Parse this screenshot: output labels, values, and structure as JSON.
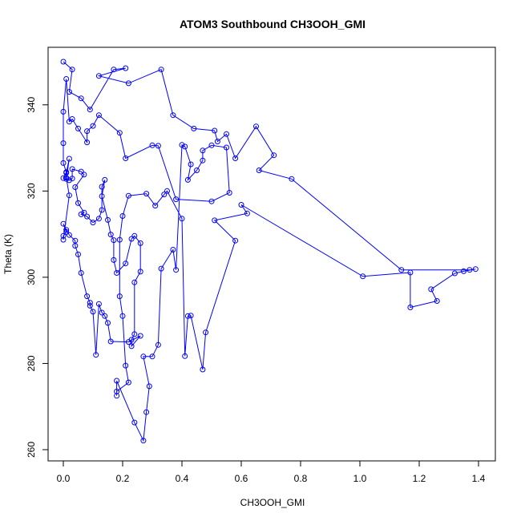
{
  "chart_data": {
    "type": "line",
    "title": "ATOM3 Southbound CH3OOH_GMI",
    "xlabel": "CH3OOH_GMI",
    "ylabel": "Theta (K)",
    "xlim": [
      0,
      1.4
    ],
    "ylim": [
      260,
      350
    ],
    "x_ticks": [
      "0.0",
      "0.2",
      "0.4",
      "0.6",
      "0.8",
      "1.0",
      "1.2",
      "1.4"
    ],
    "x_tick_values": [
      0,
      0.2,
      0.4,
      0.6,
      0.8,
      1.0,
      1.2,
      1.4
    ],
    "y_ticks": [
      "260",
      "280",
      "300",
      "320",
      "340"
    ],
    "y_tick_values": [
      260,
      280,
      300,
      320,
      340
    ],
    "grid": false,
    "markers": "open-circle",
    "color": "#0000ff",
    "series": [
      {
        "points": [
          [
            0.0,
            350.0
          ],
          [
            0.03,
            348.2
          ],
          [
            0.02,
            343.0
          ],
          [
            0.06,
            341.5
          ],
          [
            0.09,
            338.9
          ],
          [
            0.17,
            348.2
          ],
          [
            0.21,
            348.5
          ],
          [
            0.12,
            346.7
          ],
          [
            0.22,
            345.0
          ],
          [
            0.33,
            348.2
          ],
          [
            0.37,
            337.6
          ],
          [
            0.44,
            334.5
          ],
          [
            0.51,
            334.0
          ],
          [
            0.52,
            331.5
          ],
          [
            0.55,
            333.2
          ],
          [
            0.58,
            327.6
          ],
          [
            0.65,
            335.0
          ],
          [
            0.71,
            328.3
          ],
          [
            0.66,
            324.8
          ],
          [
            0.77,
            322.8
          ],
          [
            1.14,
            301.7
          ],
          [
            1.37,
            301.7
          ],
          [
            1.39,
            301.9
          ],
          [
            1.35,
            301.4
          ],
          [
            1.32,
            300.9
          ],
          [
            1.24,
            297.2
          ],
          [
            1.26,
            294.5
          ],
          [
            1.17,
            293.0
          ],
          [
            1.17,
            301.1
          ],
          [
            1.01,
            300.2
          ],
          [
            0.6,
            316.8
          ],
          [
            0.62,
            314.8
          ],
          [
            0.51,
            313.2
          ],
          [
            0.58,
            308.5
          ],
          [
            0.48,
            287.2
          ],
          [
            0.47,
            278.6
          ],
          [
            0.43,
            291.1
          ],
          [
            0.42,
            291.0
          ],
          [
            0.41,
            281.7
          ],
          [
            0.4,
            313.6
          ],
          [
            0.35,
            320.0
          ],
          [
            0.34,
            319.2
          ],
          [
            0.31,
            316.6
          ],
          [
            0.28,
            319.4
          ],
          [
            0.22,
            318.9
          ],
          [
            0.2,
            314.2
          ],
          [
            0.19,
            308.7
          ],
          [
            0.19,
            295.6
          ],
          [
            0.2,
            291.0
          ],
          [
            0.21,
            279.5
          ],
          [
            0.22,
            275.6
          ],
          [
            0.18,
            273.5
          ],
          [
            0.18,
            272.5
          ],
          [
            0.18,
            276.0
          ],
          [
            0.24,
            266.3
          ],
          [
            0.27,
            262.1
          ],
          [
            0.28,
            268.7
          ],
          [
            0.29,
            274.7
          ],
          [
            0.27,
            281.6
          ],
          [
            0.3,
            281.6
          ],
          [
            0.32,
            284.3
          ],
          [
            0.33,
            302.0
          ],
          [
            0.37,
            306.4
          ],
          [
            0.38,
            301.7
          ],
          [
            0.4,
            330.7
          ],
          [
            0.41,
            330.3
          ],
          [
            0.43,
            326.2
          ],
          [
            0.42,
            322.6
          ],
          [
            0.45,
            324.8
          ],
          [
            0.47,
            327.1
          ],
          [
            0.47,
            329.4
          ],
          [
            0.5,
            330.6
          ],
          [
            0.55,
            330.1
          ],
          [
            0.56,
            319.6
          ],
          [
            0.5,
            317.6
          ],
          [
            0.38,
            318.1
          ],
          [
            0.32,
            330.5
          ],
          [
            0.3,
            330.6
          ],
          [
            0.21,
            327.6
          ],
          [
            0.19,
            333.5
          ],
          [
            0.12,
            337.6
          ],
          [
            0.1,
            335.1
          ],
          [
            0.08,
            333.9
          ],
          [
            0.08,
            331.3
          ],
          [
            0.05,
            334.5
          ],
          [
            0.03,
            336.7
          ],
          [
            0.02,
            336.1
          ],
          [
            0.01,
            346.0
          ],
          [
            0.0,
            338.4
          ],
          [
            0.0,
            331.1
          ],
          [
            0.0,
            326.5
          ],
          [
            0.01,
            324.4
          ],
          [
            0.0,
            323.0
          ],
          [
            0.02,
            322.5
          ],
          [
            0.03,
            322.9
          ],
          [
            0.03,
            325.1
          ],
          [
            0.06,
            324.5
          ],
          [
            0.07,
            323.8
          ],
          [
            0.04,
            320.9
          ],
          [
            0.05,
            317.2
          ],
          [
            0.07,
            315.0
          ],
          [
            0.06,
            314.6
          ],
          [
            0.08,
            314.1
          ],
          [
            0.1,
            312.7
          ],
          [
            0.12,
            313.6
          ],
          [
            0.13,
            315.6
          ],
          [
            0.13,
            321.0
          ],
          [
            0.14,
            322.6
          ],
          [
            0.13,
            318.8
          ],
          [
            0.15,
            313.3
          ],
          [
            0.16,
            309.9
          ],
          [
            0.17,
            308.6
          ],
          [
            0.17,
            304.0
          ],
          [
            0.18,
            301.0
          ],
          [
            0.21,
            303.2
          ],
          [
            0.23,
            308.9
          ],
          [
            0.24,
            309.6
          ],
          [
            0.26,
            307.9
          ],
          [
            0.26,
            301.3
          ],
          [
            0.24,
            298.8
          ],
          [
            0.24,
            286.8
          ],
          [
            0.23,
            285.5
          ],
          [
            0.23,
            284.0
          ],
          [
            0.26,
            286.4
          ],
          [
            0.22,
            285.0
          ],
          [
            0.16,
            285.1
          ],
          [
            0.15,
            289.4
          ],
          [
            0.14,
            291.0
          ],
          [
            0.13,
            291.8
          ],
          [
            0.12,
            293.8
          ],
          [
            0.11,
            282.0
          ],
          [
            0.1,
            292.0
          ],
          [
            0.09,
            293.4
          ],
          [
            0.09,
            294.1
          ],
          [
            0.08,
            295.6
          ],
          [
            0.06,
            301.0
          ],
          [
            0.05,
            305.3
          ],
          [
            0.04,
            307.3
          ],
          [
            0.04,
            308.5
          ],
          [
            0.02,
            309.8
          ],
          [
            0.01,
            311.0
          ],
          [
            0.0,
            312.4
          ],
          [
            0.01,
            310.5
          ],
          [
            0.0,
            309.6
          ],
          [
            0.0,
            308.7
          ],
          [
            0.02,
            319.0
          ],
          [
            0.01,
            323.1
          ],
          [
            0.01,
            324.2
          ],
          [
            0.02,
            327.5
          ],
          [
            0.01,
            322.8
          ]
        ]
      }
    ]
  }
}
